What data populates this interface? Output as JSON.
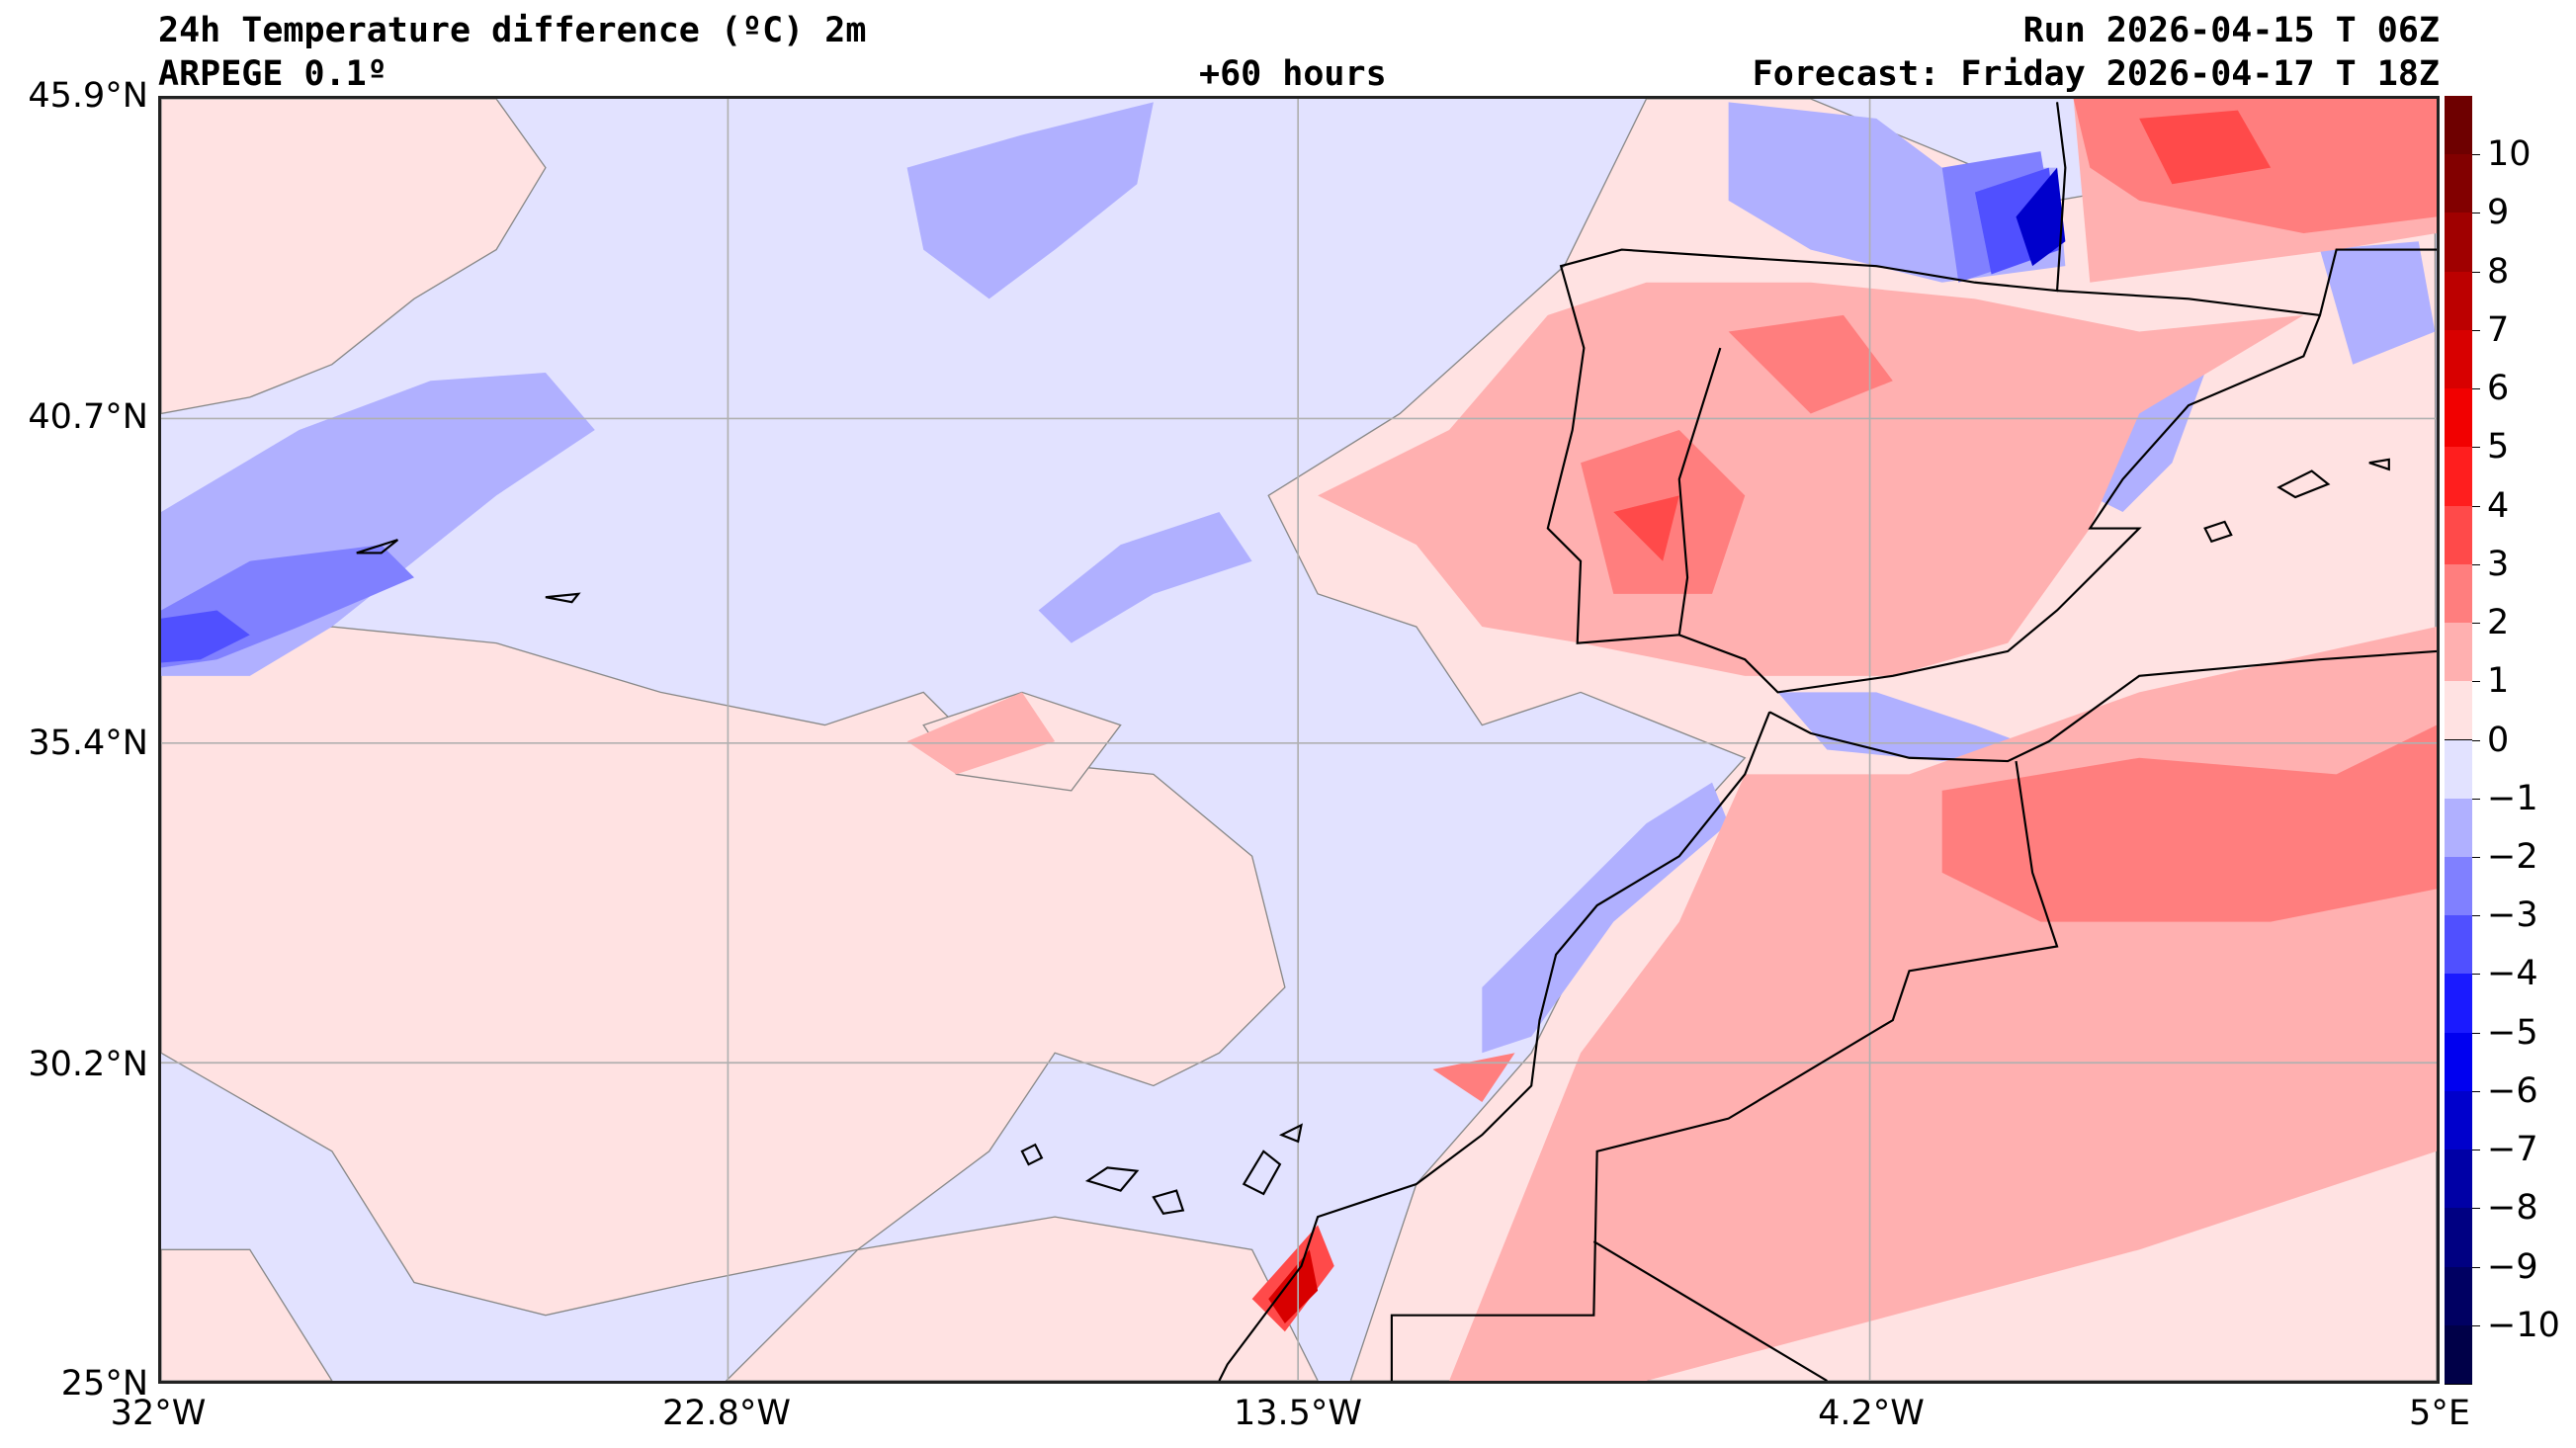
{
  "header": {
    "title": "24h Temperature difference (ºC) 2m",
    "model": "ARPEGE 0.1º",
    "lead_time": "+60 hours",
    "run": "Run 2026-04-15 T 06Z",
    "forecast": "Forecast: Friday 2026-04-17 T 18Z"
  },
  "axes": {
    "lat_labels": [
      "45.9°N",
      "40.7°N",
      "35.4°N",
      "30.2°N",
      "25°N"
    ],
    "lon_labels": [
      "32°W",
      "22.8°W",
      "13.5°W",
      "4.2°W",
      "5°E"
    ]
  },
  "colorbar": {
    "ticks": [
      "10",
      "9",
      "8",
      "7",
      "6",
      "5",
      "4",
      "3",
      "2",
      "1",
      "0",
      "−1",
      "−2",
      "−3",
      "−4",
      "−5",
      "−6",
      "−7",
      "−8",
      "−9",
      "−10"
    ],
    "colors": [
      "#6e0000",
      "#820000",
      "#a00000",
      "#bc0000",
      "#d80000",
      "#f20000",
      "#ff1e1e",
      "#ff4a4a",
      "#ff7e7e",
      "#ffb0b0",
      "#ffe2e2",
      "#e2e2ff",
      "#b0b0ff",
      "#8080ff",
      "#5050ff",
      "#1a1aff",
      "#0000f0",
      "#0000cc",
      "#0000a6",
      "#000082",
      "#000062",
      "#000048"
    ]
  },
  "map_colors": {
    "ocean_neg": "#e2e2ff",
    "pos1": "#ffe2e2",
    "pos2": "#ffb0b0",
    "pos3": "#ff7e7e",
    "pos4": "#ff4a4a",
    "neg2": "#b0b0ff",
    "neg3": "#8080ff",
    "neg4": "#5050ff",
    "neg6": "#0000cc"
  }
}
